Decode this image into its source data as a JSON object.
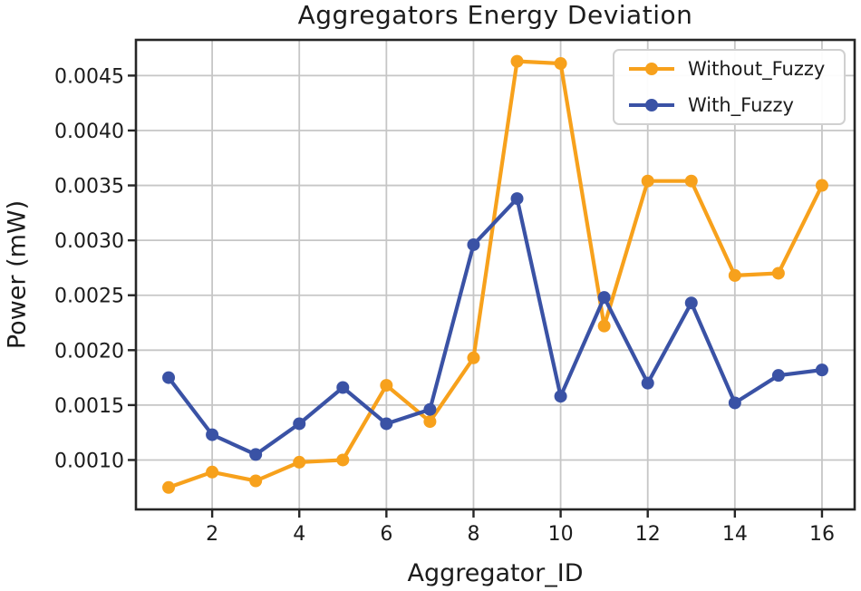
{
  "chart_data": {
    "type": "line",
    "title": "Aggregators Energy Deviation",
    "xlabel": "Aggregator_ID",
    "ylabel": "Power (mW)",
    "x": [
      1,
      2,
      3,
      4,
      5,
      6,
      7,
      8,
      9,
      10,
      11,
      12,
      13,
      14,
      15,
      16
    ],
    "series": [
      {
        "name": "Without_Fuzzy",
        "color": "#F7A11C",
        "values": [
          0.00075,
          0.00089,
          0.00081,
          0.00098,
          0.001,
          0.00168,
          0.00135,
          0.00193,
          0.00463,
          0.00461,
          0.00222,
          0.00354,
          0.00354,
          0.00268,
          0.0027,
          0.0035
        ]
      },
      {
        "name": "With_Fuzzy",
        "color": "#3A52A5",
        "values": [
          0.00175,
          0.00123,
          0.00105,
          0.00133,
          0.00166,
          0.00133,
          0.00146,
          0.00296,
          0.00338,
          0.00158,
          0.00248,
          0.0017,
          0.00243,
          0.00152,
          0.00177,
          0.00182
        ]
      }
    ],
    "xlim": [
      0.25,
      16.75
    ],
    "ylim": [
      0.00055,
      0.004825
    ],
    "xticks": [
      2,
      4,
      6,
      8,
      10,
      12,
      14,
      16
    ],
    "xtick_labels": [
      "2",
      "4",
      "6",
      "8",
      "10",
      "12",
      "14",
      "16"
    ],
    "yticks": [
      0.001,
      0.0015,
      0.002,
      0.0025,
      0.003,
      0.0035,
      0.004,
      0.0045
    ],
    "ytick_labels": [
      "0.0010",
      "0.0015",
      "0.0020",
      "0.0025",
      "0.0030",
      "0.0035",
      "0.0040",
      "0.0045"
    ],
    "grid": true,
    "legend_position": "upper right",
    "marker": "circle"
  },
  "style": {
    "grid_color": "#c6c6c6",
    "spine_color": "#262626",
    "text_color": "#1c1c1c",
    "background": "#ffffff"
  }
}
